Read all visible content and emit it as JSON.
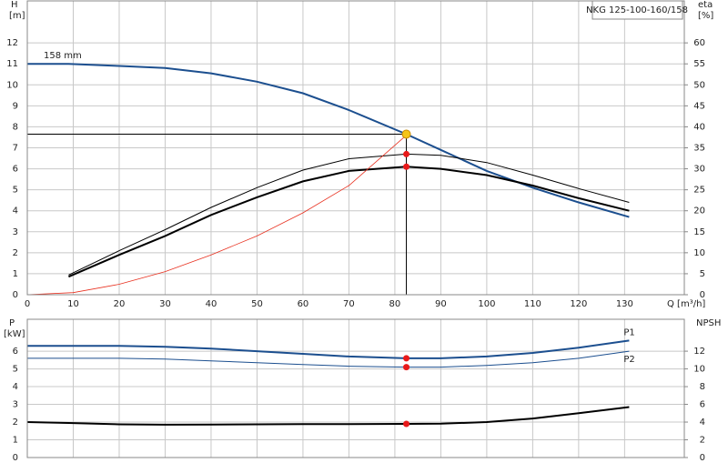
{
  "chart_data": [
    {
      "type": "line",
      "title": "NKG 125-100-160/158",
      "ylabel": "H",
      "yunit": "[m]",
      "y2label": "eta",
      "y2unit": "[%]",
      "xlabel": "Q [m³/h]",
      "annotation": "158 mm",
      "xlim": [
        0,
        143
      ],
      "xticks": [
        0,
        10,
        20,
        30,
        40,
        50,
        60,
        70,
        80,
        90,
        100,
        110,
        120,
        130
      ],
      "ylim": [
        0,
        14
      ],
      "yticks": [
        0,
        1,
        2,
        3,
        4,
        5,
        6,
        7,
        8,
        9,
        10,
        11,
        12
      ],
      "y2lim": [
        0,
        70
      ],
      "y2ticks": [
        0,
        5,
        10,
        15,
        20,
        25,
        30,
        35,
        40,
        45,
        50,
        55,
        60
      ],
      "grid": true,
      "series": [
        {
          "color": "#1c4f8f",
          "line_width": 2,
          "axis": "y",
          "x": [
            0,
            9,
            20,
            30,
            40,
            50,
            60,
            70,
            82.5,
            90,
            100,
            110,
            120,
            131
          ],
          "values": [
            11,
            11,
            10.9,
            10.8,
            10.55,
            10.15,
            9.6,
            8.8,
            7.65,
            6.9,
            5.9,
            5.1,
            4.4,
            3.7
          ]
        },
        {
          "color": "#000000",
          "line_width": 1,
          "axis": "y2",
          "x": [
            9,
            20,
            30,
            40,
            50,
            60,
            70,
            82.5,
            90,
            100,
            110,
            120,
            131
          ],
          "values": [
            4.7,
            10.5,
            15.5,
            20.8,
            25.5,
            29.7,
            32.4,
            33.5,
            33.2,
            31.5,
            28.5,
            25.3,
            22
          ]
        },
        {
          "color": "#000000",
          "line_width": 2,
          "axis": "y2",
          "x": [
            9,
            20,
            30,
            40,
            50,
            60,
            70,
            82.5,
            90,
            100,
            110,
            120,
            131
          ],
          "values": [
            4.3,
            9.5,
            14,
            19,
            23.2,
            27,
            29.5,
            30.5,
            30,
            28.5,
            26,
            23,
            20
          ]
        },
        {
          "color": "#e8301f",
          "line_width": 0.8,
          "axis": "y",
          "x": [
            0,
            10,
            20,
            30,
            40,
            50,
            60,
            70,
            82.5
          ],
          "values": [
            0,
            0.1,
            0.5,
            1.1,
            1.9,
            2.8,
            3.9,
            5.2,
            7.6
          ]
        }
      ],
      "duty_point": {
        "x": 82.5,
        "h": 7.65,
        "eta": [
          33.5,
          30.5
        ],
        "color": "#f5c518",
        "dot_color": "#e8191a"
      }
    },
    {
      "type": "line",
      "ylabel": "P",
      "yunit": "[kW]",
      "y2label": "NPSH",
      "xlim": [
        0,
        143
      ],
      "xticks": [
        0,
        10,
        20,
        30,
        40,
        50,
        60,
        70,
        80,
        90,
        100,
        110,
        120,
        130
      ],
      "ylim": [
        0,
        7.8
      ],
      "yticks": [
        0,
        1,
        2,
        3,
        4,
        5,
        6
      ],
      "y2lim": [
        0,
        15.6
      ],
      "y2ticks": [
        0,
        2,
        4,
        6,
        8,
        10,
        12
      ],
      "grid": true,
      "series": [
        {
          "name": "P1",
          "color": "#1c4f8f",
          "line_width": 2,
          "axis": "y",
          "x": [
            0,
            9,
            20,
            30,
            40,
            50,
            60,
            70,
            82.5,
            90,
            100,
            110,
            120,
            131
          ],
          "values": [
            6.3,
            6.3,
            6.3,
            6.25,
            6.15,
            6.0,
            5.85,
            5.7,
            5.6,
            5.6,
            5.7,
            5.9,
            6.2,
            6.6
          ]
        },
        {
          "name": "P2",
          "color": "#1c4f8f",
          "line_width": 1,
          "axis": "y",
          "x": [
            0,
            20,
            30,
            40,
            50,
            60,
            70,
            82.5,
            90,
            100,
            110,
            120,
            131
          ],
          "values": [
            5.6,
            5.6,
            5.55,
            5.45,
            5.35,
            5.25,
            5.15,
            5.1,
            5.1,
            5.2,
            5.35,
            5.6,
            6.0
          ]
        },
        {
          "color": "#000000",
          "line_width": 2,
          "axis": "y2",
          "x": [
            0,
            9,
            20,
            30,
            40,
            50,
            60,
            70,
            82.5,
            90,
            100,
            110,
            120,
            131
          ],
          "values": [
            4,
            3.9,
            3.75,
            3.7,
            3.72,
            3.75,
            3.78,
            3.78,
            3.8,
            3.82,
            4.0,
            4.4,
            5.0,
            5.7
          ]
        }
      ],
      "duty_point": {
        "x": 82.5,
        "p": [
          5.6,
          5.1
        ],
        "npsh": 3.8,
        "dot_color": "#e8191a"
      }
    }
  ]
}
